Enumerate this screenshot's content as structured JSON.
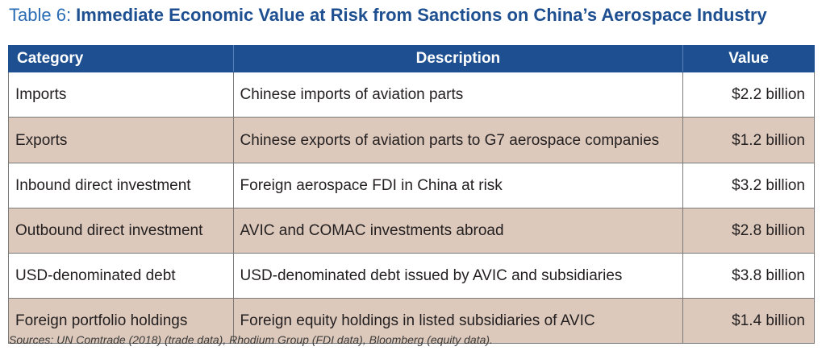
{
  "title": {
    "prefix": "Table 6: ",
    "main": "Immediate Economic Value at Risk from Sanctions on China’s Aerospace Industry"
  },
  "table": {
    "headers": {
      "category": "Category",
      "description": "Description",
      "value": "Value"
    },
    "rows": [
      {
        "category": "Imports",
        "description": "Chinese imports of aviation parts",
        "value": "$2.2 billion"
      },
      {
        "category": "Exports",
        "description": "Chinese exports of aviation parts to G7 aerospace companies",
        "value": "$1.2 billion"
      },
      {
        "category": "Inbound direct investment",
        "description": "Foreign aerospace FDI in China at risk",
        "value": "$3.2 billion"
      },
      {
        "category": "Outbound direct investment",
        "description": "AVIC and COMAC investments abroad",
        "value": "$2.8 billion"
      },
      {
        "category": "USD-denominated debt",
        "description": "USD-denominated debt issued by AVIC and subsidiaries",
        "value": "$3.8 billion"
      },
      {
        "category": "Foreign portfolio holdings",
        "description": "Foreign equity holdings in listed subsidiaries of AVIC",
        "value": "$1.4 billion"
      }
    ]
  },
  "sources": "Sources: UN Comtrade (2018) (trade data), Rhodium Group (FDI data), Bloomberg (equity data).",
  "colors": {
    "header_bg": "#1d4f91",
    "title_main": "#1d4f91",
    "title_prefix": "#2a6db5",
    "shaded_row": "#dcc9bb"
  }
}
